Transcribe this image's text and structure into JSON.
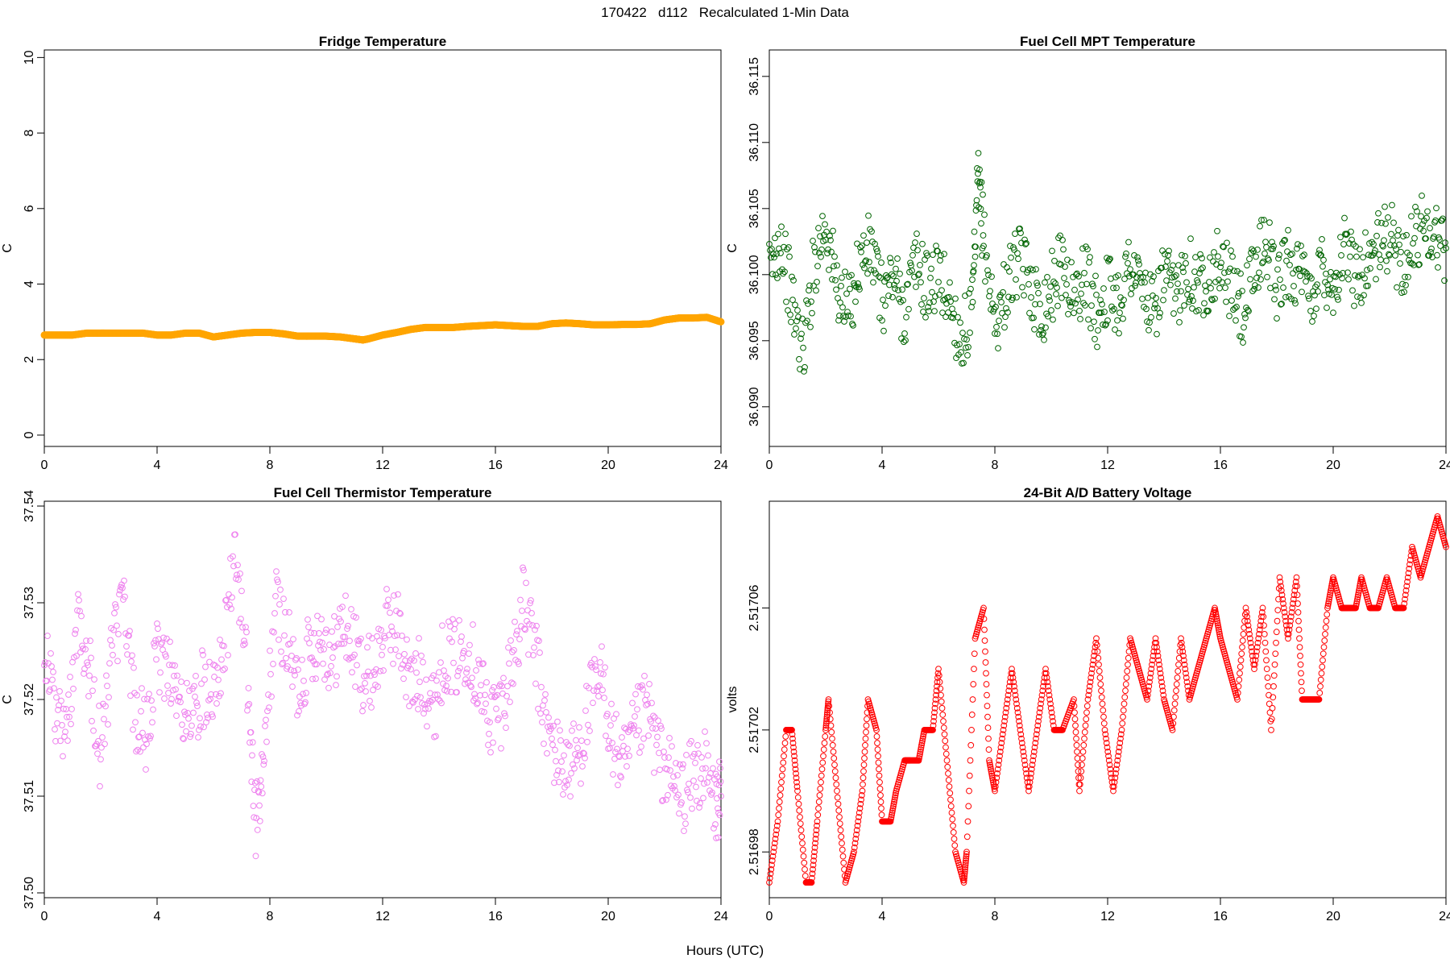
{
  "figure": {
    "title": "170422   d112   Recalculated 1-Min Data",
    "xlabel": "Hours (UTC)"
  },
  "chart_data": [
    {
      "type": "scatter",
      "title": "Fridge Temperature",
      "ylabel": "C",
      "xlabel": "",
      "xlim": [
        0,
        24
      ],
      "ylim": [
        -0.3,
        10.2
      ],
      "xticks": [
        0,
        4,
        8,
        12,
        16,
        20,
        24
      ],
      "yticks": [
        0,
        2,
        4,
        6,
        8,
        10
      ],
      "ytick_labels": [
        "0",
        "2",
        "4",
        "6",
        "8",
        "10"
      ],
      "color": "#FFA500",
      "marker": "circle-open",
      "series": [
        {
          "x": [
            0,
            0.5,
            1,
            1.5,
            2,
            2.5,
            3,
            3.5,
            4,
            4.5,
            5,
            5.5,
            6,
            6.5,
            7,
            7.5,
            8,
            8.5,
            9,
            9.5,
            10,
            10.5,
            11,
            11.3,
            11.5,
            12,
            12.5,
            13,
            13.5,
            14,
            14.5,
            15,
            15.5,
            16,
            16.5,
            17,
            17.5,
            18,
            18.5,
            19,
            19.5,
            20,
            20.5,
            21,
            21.5,
            22,
            22.5,
            23,
            23.5,
            24
          ],
          "y": [
            2.65,
            2.65,
            2.65,
            2.7,
            2.7,
            2.7,
            2.7,
            2.7,
            2.65,
            2.65,
            2.7,
            2.7,
            2.6,
            2.65,
            2.7,
            2.72,
            2.72,
            2.68,
            2.62,
            2.62,
            2.62,
            2.6,
            2.55,
            2.52,
            2.55,
            2.65,
            2.72,
            2.8,
            2.85,
            2.85,
            2.85,
            2.88,
            2.9,
            2.92,
            2.9,
            2.88,
            2.88,
            2.95,
            2.97,
            2.95,
            2.92,
            2.92,
            2.93,
            2.93,
            2.95,
            3.05,
            3.1,
            3.1,
            3.12,
            3.0
          ]
        }
      ]
    },
    {
      "type": "scatter",
      "title": "Fuel Cell MPT Temperature",
      "ylabel": "C",
      "xlabel": "",
      "xlim": [
        0,
        24
      ],
      "ylim": [
        36.087,
        36.117
      ],
      "xticks": [
        0,
        4,
        8,
        12,
        16,
        20,
        24
      ],
      "yticks": [
        36.09,
        36.095,
        36.1,
        36.105,
        36.11,
        36.115
      ],
      "ytick_labels": [
        "36.090",
        "36.095",
        "36.100",
        "36.105",
        "36.110",
        "36.115"
      ],
      "color": "#006400",
      "marker": "circle-open",
      "series": [
        {
          "x": [
            0,
            0.4,
            0.8,
            1.2,
            1.6,
            2,
            2.4,
            2.8,
            3.2,
            3.6,
            4,
            4.4,
            4.8,
            5.2,
            5.6,
            6,
            6.4,
            6.8,
            7.2,
            7.4,
            7.6,
            8,
            8.4,
            8.8,
            9.2,
            9.6,
            10,
            10.4,
            10.8,
            11.2,
            11.6,
            12,
            12.4,
            12.8,
            13.2,
            13.6,
            14,
            14.4,
            14.8,
            15.2,
            15.6,
            16,
            16.4,
            16.8,
            17.2,
            17.6,
            18,
            18.4,
            18.8,
            19.2,
            19.6,
            20,
            20.4,
            20.8,
            21.2,
            21.6,
            22,
            22.4,
            22.8,
            23.2,
            23.6,
            24
          ],
          "y": [
            36.1,
            36.103,
            36.098,
            36.094,
            36.101,
            36.104,
            36.099,
            36.097,
            36.101,
            36.102,
            36.098,
            36.1,
            36.097,
            36.101,
            36.099,
            36.1,
            36.098,
            36.095,
            36.097,
            36.107,
            36.103,
            36.096,
            36.099,
            36.101,
            36.1,
            36.097,
            36.099,
            36.101,
            36.098,
            36.1,
            36.097,
            36.099,
            36.098,
            36.101,
            36.099,
            36.097,
            36.1,
            36.098,
            36.101,
            36.099,
            36.1,
            36.101,
            36.099,
            36.097,
            36.1,
            36.103,
            36.099,
            36.101,
            36.1,
            36.098,
            36.101,
            36.099,
            36.102,
            36.1,
            36.101,
            36.102,
            36.103,
            36.101,
            36.102,
            36.104,
            36.103,
            36.102
          ]
        }
      ]
    },
    {
      "type": "scatter",
      "title": "Fuel Cell Thermistor Temperature",
      "ylabel": "C",
      "xlabel": "",
      "xlim": [
        0,
        24
      ],
      "ylim": [
        37.4995,
        37.5405
      ],
      "xticks": [
        0,
        4,
        8,
        12,
        16,
        20,
        24
      ],
      "yticks": [
        37.5,
        37.51,
        37.52,
        37.53,
        37.54
      ],
      "ytick_labels": [
        "37.50",
        "37.51",
        "37.52",
        "37.53",
        "37.54"
      ],
      "color": "#EE82EE",
      "marker": "circle-open",
      "series": [
        {
          "x": [
            0,
            0.4,
            0.8,
            1.2,
            1.6,
            2,
            2.4,
            2.8,
            3.2,
            3.6,
            4,
            4.4,
            4.8,
            5.2,
            5.6,
            6,
            6.4,
            6.8,
            7.2,
            7.5,
            7.8,
            8.2,
            8.6,
            9,
            9.4,
            9.8,
            10.2,
            10.6,
            11,
            11.4,
            11.8,
            12.2,
            12.6,
            13,
            13.4,
            13.8,
            14.2,
            14.6,
            15,
            15.4,
            15.8,
            16.2,
            16.6,
            17,
            17.4,
            17.8,
            18.2,
            18.6,
            19,
            19.4,
            19.8,
            20.2,
            20.6,
            21,
            21.4,
            21.8,
            22.2,
            22.6,
            23,
            23.4,
            23.8,
            24
          ],
          "y": [
            37.526,
            37.519,
            37.516,
            37.53,
            37.523,
            37.514,
            37.525,
            37.53,
            37.519,
            37.516,
            37.524,
            37.524,
            37.519,
            37.518,
            37.521,
            37.522,
            37.526,
            37.535,
            37.522,
            37.507,
            37.513,
            37.53,
            37.526,
            37.521,
            37.525,
            37.527,
            37.524,
            37.528,
            37.525,
            37.522,
            37.524,
            37.528,
            37.527,
            37.521,
            37.523,
            37.519,
            37.525,
            37.524,
            37.526,
            37.522,
            37.518,
            37.519,
            37.524,
            37.53,
            37.525,
            37.517,
            37.514,
            37.513,
            37.515,
            37.52,
            37.522,
            37.515,
            37.513,
            37.517,
            37.519,
            37.514,
            37.512,
            37.51,
            37.512,
            37.513,
            37.509,
            37.51
          ]
        }
      ]
    },
    {
      "type": "scatter",
      "title": "24-Bit A/D Battery Voltage",
      "ylabel": "volts",
      "xlabel": "",
      "xlim": [
        0,
        24
      ],
      "ylim": [
        2.516965,
        2.517095
      ],
      "xticks": [
        0,
        4,
        8,
        12,
        16,
        20,
        24
      ],
      "yticks": [
        2.51698,
        2.51702,
        2.51706
      ],
      "ytick_labels": [
        "2.51698",
        "2.51702",
        "2.51706"
      ],
      "color": "#FF0000",
      "marker": "circle-open",
      "series": [
        {
          "x": [
            0,
            0.3,
            0.6,
            0.8,
            1,
            1.3,
            1.5,
            1.7,
            2,
            2.1,
            2.4,
            2.7,
            3,
            3.3,
            3.5,
            3.8,
            4,
            4.3,
            4.5,
            4.8,
            5,
            5.3,
            5.5,
            5.8,
            6,
            6.3,
            6.6,
            6.9,
            7,
            7.3,
            7.6,
            7.8,
            8,
            8.3,
            8.6,
            8.9,
            9.2,
            9.5,
            9.8,
            10.1,
            10.4,
            10.8,
            11,
            11.3,
            11.6,
            11.9,
            12.2,
            12.5,
            12.8,
            13.1,
            13.4,
            13.7,
            14,
            14.3,
            14.6,
            14.9,
            15.2,
            15.5,
            15.8,
            16,
            16.3,
            16.6,
            16.9,
            17.2,
            17.5,
            17.8,
            18.1,
            18.4,
            18.7,
            18.9,
            19.2,
            19.5,
            19.8,
            20,
            20.3,
            20.5,
            20.8,
            21,
            21.3,
            21.6,
            21.9,
            22.2,
            22.5,
            22.8,
            23.1,
            23.4,
            23.7,
            24
          ],
          "y": [
            2.51697,
            2.51699,
            2.51702,
            2.51702,
            2.517,
            2.51697,
            2.51697,
            2.51699,
            2.51702,
            2.51703,
            2.517,
            2.51697,
            2.51698,
            2.517,
            2.51703,
            2.51702,
            2.51699,
            2.51699,
            2.517,
            2.51701,
            2.51701,
            2.51701,
            2.51702,
            2.51702,
            2.51704,
            2.51701,
            2.51698,
            2.51697,
            2.51698,
            2.51705,
            2.51706,
            2.51701,
            2.517,
            2.51702,
            2.51704,
            2.51702,
            2.517,
            2.51702,
            2.51704,
            2.51702,
            2.51702,
            2.51703,
            2.517,
            2.51703,
            2.51705,
            2.51702,
            2.517,
            2.51702,
            2.51705,
            2.51704,
            2.51703,
            2.51705,
            2.51703,
            2.51702,
            2.51705,
            2.51703,
            2.51704,
            2.51705,
            2.51706,
            2.51705,
            2.51704,
            2.51703,
            2.51706,
            2.51704,
            2.51706,
            2.51702,
            2.51707,
            2.51705,
            2.51707,
            2.51703,
            2.51703,
            2.51703,
            2.51706,
            2.51707,
            2.51706,
            2.51706,
            2.51706,
            2.51707,
            2.51706,
            2.51706,
            2.51707,
            2.51706,
            2.51706,
            2.51708,
            2.51707,
            2.51708,
            2.51709,
            2.51708
          ]
        }
      ]
    }
  ]
}
